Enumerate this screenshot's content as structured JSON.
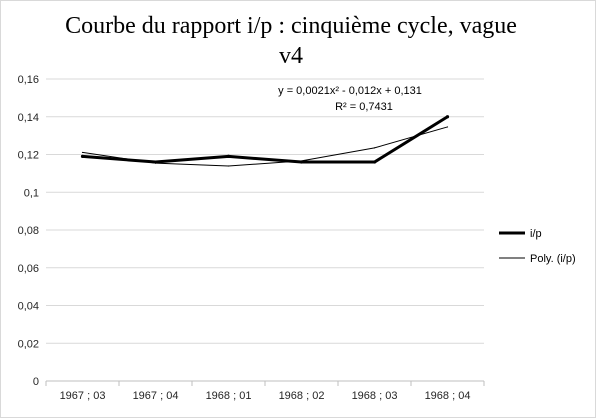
{
  "chart_data": {
    "type": "line",
    "title": "Courbe du rapport i/p : cinquième cycle, vague v4",
    "categories": [
      "1967 ; 03",
      "1967 ; 04",
      "1968 ; 01",
      "1968 ; 02",
      "1968 ; 03",
      "1968 ; 04"
    ],
    "ylim": [
      0,
      0.16
    ],
    "yticks": [
      "0",
      "0,02",
      "0,04",
      "0,06",
      "0,08",
      "0,1",
      "0,12",
      "0,14",
      "0,16"
    ],
    "grid": true,
    "legend_position": "right",
    "series": [
      {
        "name": "i/p",
        "values": [
          0.119,
          0.116,
          0.119,
          0.116,
          0.116,
          0.14
        ],
        "color": "#000000",
        "style": "thick"
      },
      {
        "name": "Poly. (i/p)",
        "values": [
          0.1211,
          0.1154,
          0.1139,
          0.1166,
          0.1235,
          0.1346
        ],
        "color": "#000000",
        "style": "thin",
        "trend": true
      }
    ],
    "trend_equation": "y = 0,0021x² - 0,012x + 0,131",
    "trend_r2": "R² = 0,7431"
  }
}
